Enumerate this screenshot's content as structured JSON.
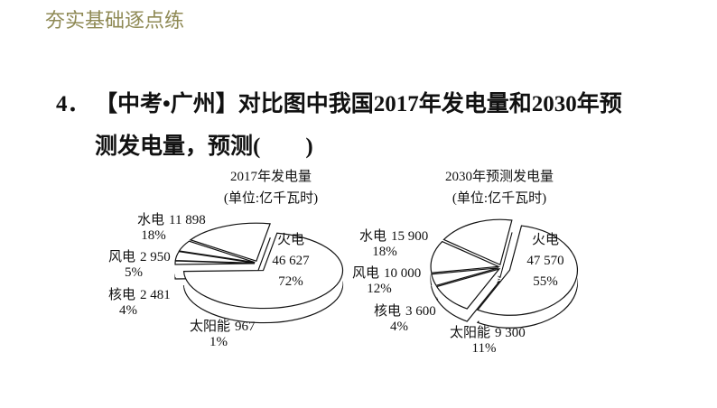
{
  "header": "夯实基础逐点练",
  "question": {
    "number": "4．",
    "lines": [
      "【中考•广州】对比图中我国2017年发电量和2030年预",
      "测发电量，预测(　　)"
    ]
  },
  "chart_data": [
    {
      "type": "pie",
      "title": "2017年发电量",
      "subtitle": "(单位:亿千瓦时)",
      "categories": [
        "火电",
        "水电",
        "风电",
        "核电",
        "太阳能"
      ],
      "values": [
        46627,
        11898,
        2950,
        2481,
        967
      ],
      "value_labels": [
        "46 627",
        "11 898",
        "2 950",
        "2 481",
        "967"
      ],
      "percents": [
        {
          "value": 72,
          "label": "72%"
        },
        {
          "value": 18,
          "label": "18%"
        },
        {
          "value": 5,
          "label": "5%"
        },
        {
          "value": 4,
          "label": "4%"
        },
        {
          "value": 1,
          "label": "1%"
        }
      ],
      "color": "#ffffff"
    },
    {
      "type": "pie",
      "title": "2030年预测发电量",
      "subtitle": "(单位:亿千瓦时)",
      "categories": [
        "火电",
        "水电",
        "风电",
        "核电",
        "太阳能"
      ],
      "values": [
        47570,
        15900,
        10000,
        3600,
        9300
      ],
      "value_labels": [
        "47 570",
        "15 900",
        "10 000",
        "3 600",
        "9 300"
      ],
      "percents": [
        {
          "value": 55,
          "label": "55%"
        },
        {
          "value": 18,
          "label": "18%"
        },
        {
          "value": 12,
          "label": "12%"
        },
        {
          "value": 4,
          "label": "4%"
        },
        {
          "value": 11,
          "label": "11%"
        }
      ],
      "color": "#ffffff"
    }
  ]
}
